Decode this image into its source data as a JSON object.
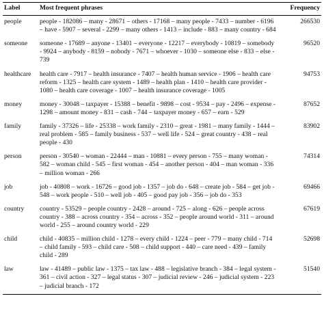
{
  "table": {
    "headers": [
      "Label",
      "Most frequent phrases",
      "Frequency"
    ],
    "rows": [
      {
        "label": "people",
        "phrases": "people - 182086 – many - 28671 – others - 17168 – many people - 7433 – number - 6196 – have - 5907 – several - 2299 – many others - 1413 – include - 883 – many country - 684",
        "frequency": "266530"
      },
      {
        "label": "someone",
        "phrases": "someone - 17689 – anyone - 13401 – everyone - 12217 – everybody - 10819 – somebody - 9924 – anybody - 8159 – nobody - 7671 – whoever - 1030 – someone else - 833 – else - 739",
        "frequency": "96520"
      },
      {
        "label": "healthcare",
        "phrases": "health care - 7917 – health insurance - 7407 – health human service - 1906 – health care reform - 1325 – health care system - 1489 – health plan - 1410 – health care provider - 1080 – health care coverage - 1007 – health insurance coverage - 1005",
        "frequency": "94753"
      },
      {
        "label": "money",
        "phrases": "money - 30048 – taxpayer - 15388 – benefit - 9898 – cost - 9534 – pay - 2496 – expense - 1298 – amount money - 831 – cash - 744 – taxpayer money - 657 – earn - 529",
        "frequency": "87652"
      },
      {
        "label": "family",
        "phrases": "family - 37326 – life - 25338 – work family - 2310 – great - 1981 – many family - 1444 – real problem - 585 – family business - 537 – well life - 524 – great country - 438 – real people - 430",
        "frequency": "83902"
      },
      {
        "label": "person",
        "phrases": "person - 30540 – woman - 22444 – man - 10881 – every person - 755 – many woman - 582 – woman child - 545 – first woman - 454 – another person - 404 – man woman - 336 – million woman - 266",
        "frequency": "74314"
      },
      {
        "label": "job",
        "phrases": "job - 40808 – work - 16726 – good job - 1357 – job do - 648 – create job - 584 – get job - 548 – work people - 510 – well job - 405 – good pay job - 356 – job do - 353",
        "frequency": "69466"
      },
      {
        "label": "country",
        "phrases": "country - 53529 – people country - 2428 – around - 725 – along - 626 – people across country - 388 – across country - 354 – across - 352 – people around world - 311 – around world - 255 – around country world - 229",
        "frequency": "67619"
      },
      {
        "label": "child",
        "phrases": "child - 40835 – million child - 1278 – every child - 1224 – peer - 779 – many child - 714 – child family - 593 – child care - 508 – child support - 440 – care need - 439 – family child - 289",
        "frequency": "52698"
      },
      {
        "label": "law",
        "phrases": "law - 41489 – public law - 1375 – tax law - 488 – legislative branch - 384 – legal system - 361 – civil action - 327 – legal status - 307 – judicial review - 246 – judicial system - 223 – judicial branch - 172",
        "frequency": "51540"
      }
    ]
  }
}
